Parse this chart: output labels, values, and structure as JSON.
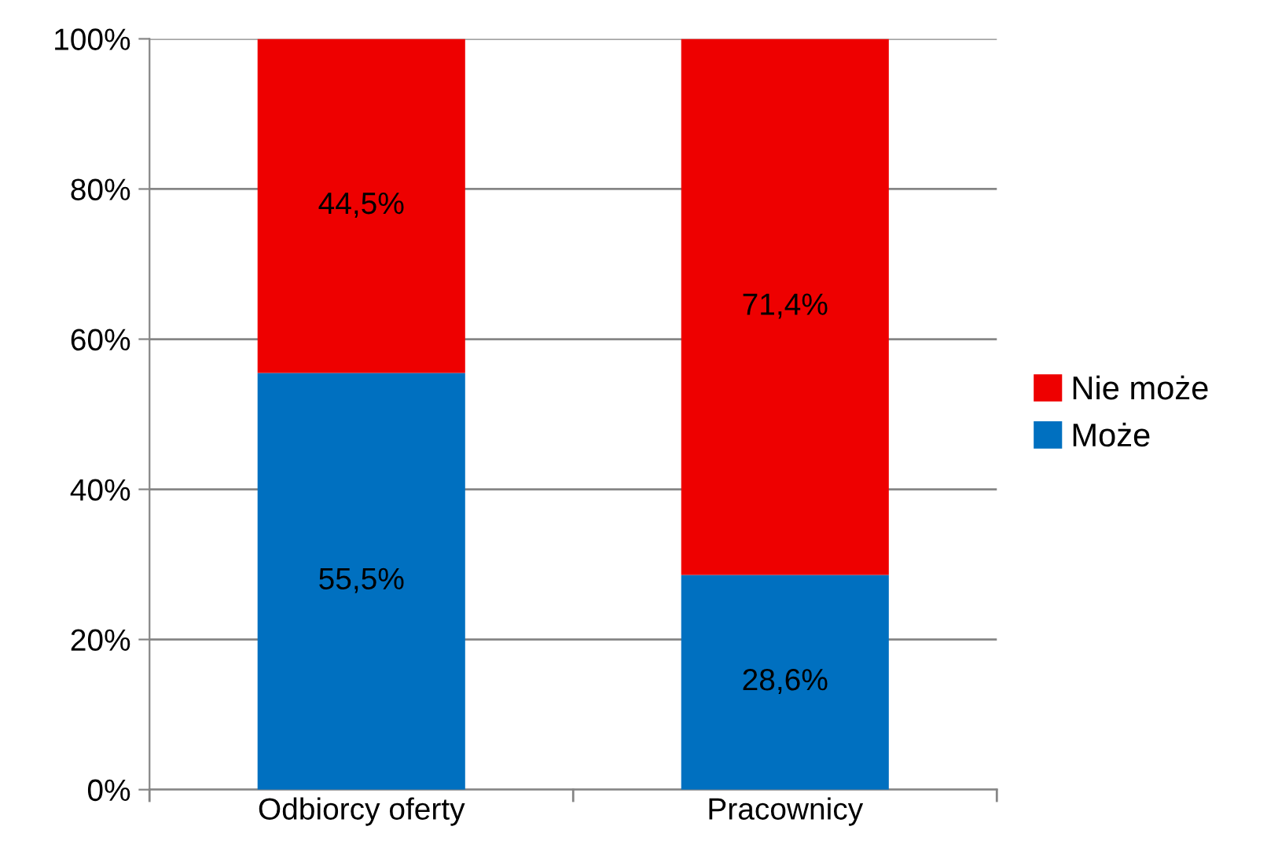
{
  "chart_data": {
    "type": "bar",
    "stacked": true,
    "categories": [
      "Odbiorcy oferty",
      "Pracownicy"
    ],
    "series": [
      {
        "name": "Może",
        "color": "#0070c0",
        "values": [
          55.5,
          28.6
        ],
        "value_labels": [
          "55,5%",
          "28,6%"
        ]
      },
      {
        "name": "Nie może",
        "color": "#ee0000",
        "values": [
          44.5,
          71.4
        ],
        "value_labels": [
          "44,5%",
          "71,4%"
        ]
      }
    ],
    "ylim": [
      0,
      100
    ],
    "yticks": [
      {
        "value": 0,
        "label": "0%"
      },
      {
        "value": 20,
        "label": "20%"
      },
      {
        "value": 40,
        "label": "40%"
      },
      {
        "value": 60,
        "label": "60%"
      },
      {
        "value": 80,
        "label": "80%"
      },
      {
        "value": 100,
        "label": "100%"
      }
    ],
    "grid": "y",
    "legend": "right"
  }
}
